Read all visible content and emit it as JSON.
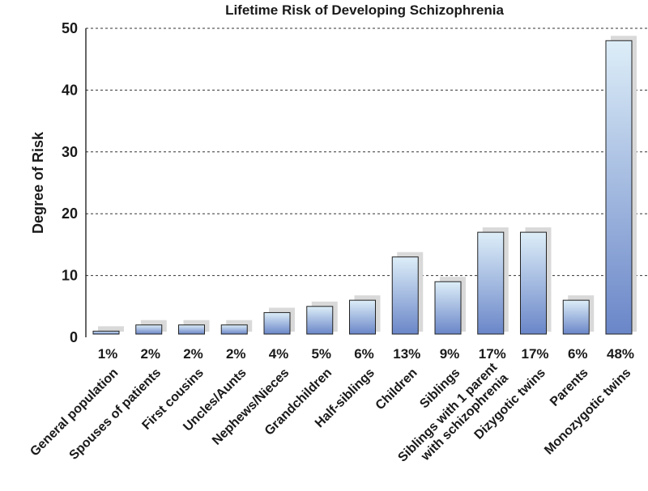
{
  "chart_data": {
    "type": "bar",
    "title": "Lifetime Risk of Developing Schizophrenia",
    "xlabel": "",
    "ylabel": "Degree of Risk",
    "ylim": [
      0,
      50
    ],
    "yticks": [
      0,
      10,
      20,
      30,
      40,
      50
    ],
    "grid": "horizontal dashed",
    "categories": [
      [
        "General population"
      ],
      [
        "Spouses of patients"
      ],
      [
        "First cousins"
      ],
      [
        "Uncles/Aunts"
      ],
      [
        "Nephews/Nieces"
      ],
      [
        "Grandchildren"
      ],
      [
        "Half-siblings"
      ],
      [
        "Children"
      ],
      [
        "Siblings"
      ],
      [
        "Siblings with 1 parent",
        "with schizophrenia"
      ],
      [
        "Dizygotic twins"
      ],
      [
        "Parents"
      ],
      [
        "Monozygotic twins"
      ]
    ],
    "values": [
      1,
      2,
      2,
      2,
      4,
      5,
      6,
      13,
      9,
      17,
      17,
      6,
      48
    ],
    "data_labels": [
      "1%",
      "2%",
      "2%",
      "2%",
      "4%",
      "5%",
      "6%",
      "13%",
      "9%",
      "17%",
      "17%",
      "6%",
      "48%"
    ],
    "colors": {
      "bar_top": "#ddeef8",
      "bar_bottom": "#6a86c8",
      "shadow": "#d9d9d9",
      "grid": "#333333",
      "axis": "#000000"
    }
  }
}
